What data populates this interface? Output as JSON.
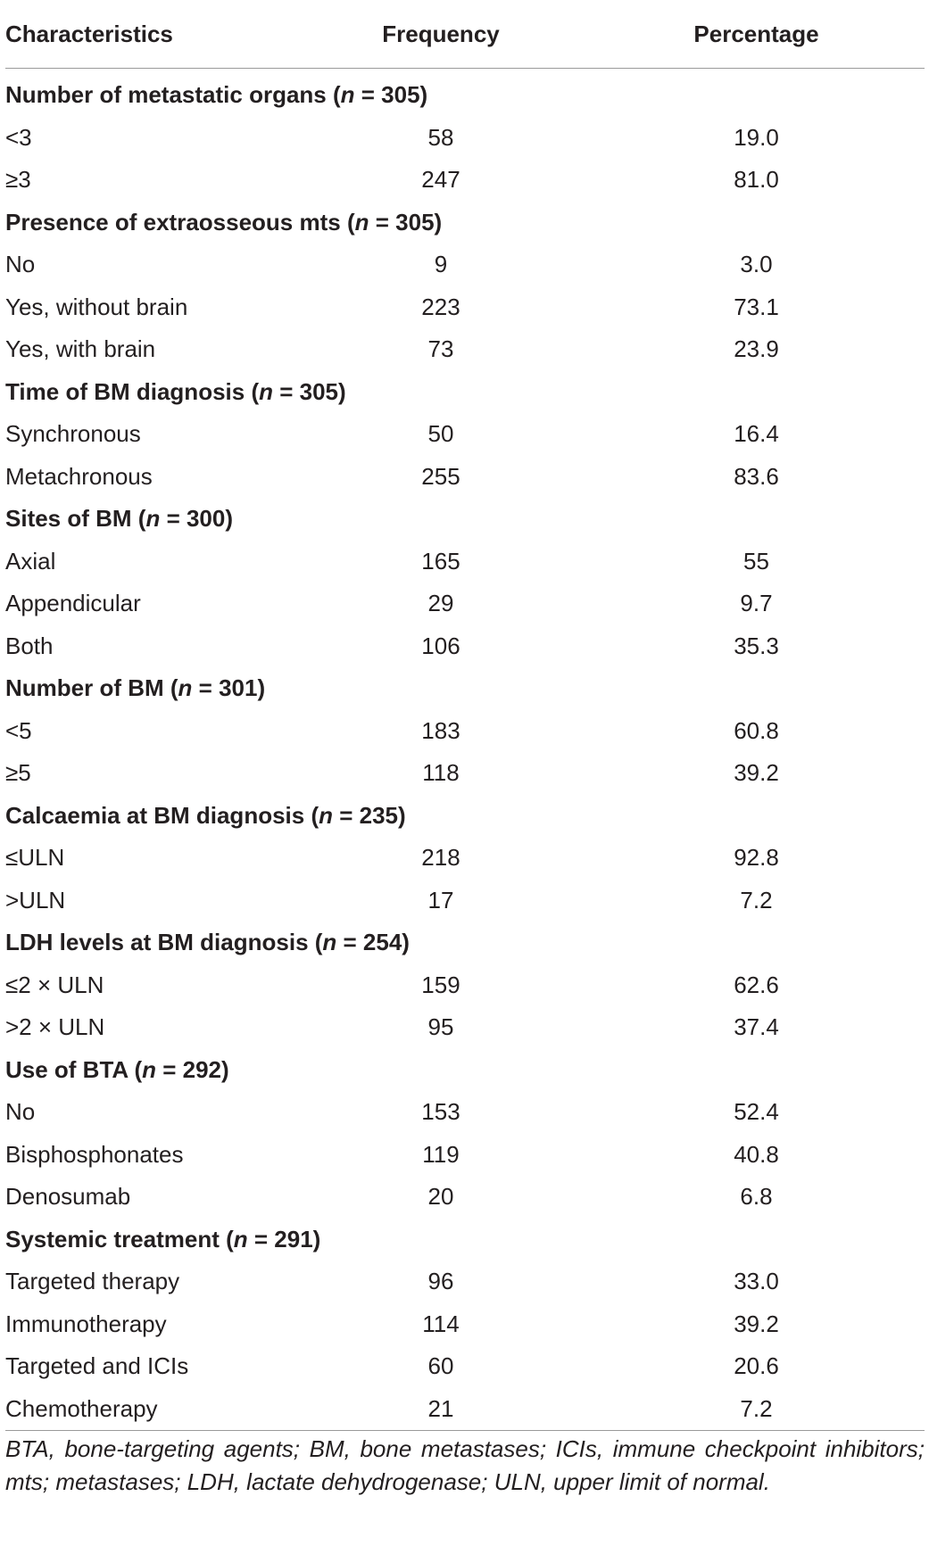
{
  "table": {
    "headers": {
      "characteristics": "Characteristics",
      "frequency": "Frequency",
      "percentage": "Percentage"
    },
    "sections": [
      {
        "label": "Number of metastatic organs (",
        "n_var": "n",
        "n_rest": " = 305)",
        "rows": [
          {
            "label": "<3",
            "frequency": "58",
            "percentage": "19.0"
          },
          {
            "label": "≥3",
            "frequency": "247",
            "percentage": "81.0"
          }
        ]
      },
      {
        "label": "Presence of extraosseous mts (",
        "n_var": "n",
        "n_rest": " = 305)",
        "rows": [
          {
            "label": "No",
            "frequency": "9",
            "percentage": "3.0"
          },
          {
            "label": "Yes, without brain",
            "frequency": "223",
            "percentage": "73.1"
          },
          {
            "label": "Yes, with brain",
            "frequency": "73",
            "percentage": "23.9"
          }
        ]
      },
      {
        "label": "Time of BM diagnosis (",
        "n_var": "n",
        "n_rest": " = 305)",
        "rows": [
          {
            "label": "Synchronous",
            "frequency": "50",
            "percentage": "16.4"
          },
          {
            "label": "Metachronous",
            "frequency": "255",
            "percentage": "83.6"
          }
        ]
      },
      {
        "label": "Sites of BM (",
        "n_var": "n",
        "n_rest": " = 300)",
        "rows": [
          {
            "label": "Axial",
            "frequency": "165",
            "percentage": "55"
          },
          {
            "label": "Appendicular",
            "frequency": "29",
            "percentage": "9.7"
          },
          {
            "label": "Both",
            "frequency": "106",
            "percentage": "35.3"
          }
        ]
      },
      {
        "label": "Number of BM (",
        "n_var": "n",
        "n_rest": " = 301)",
        "rows": [
          {
            "label": "<5",
            "frequency": "183",
            "percentage": "60.8"
          },
          {
            "label": "≥5",
            "frequency": "118",
            "percentage": "39.2"
          }
        ]
      },
      {
        "label": "Calcaemia at BM diagnosis (",
        "n_var": "n",
        "n_rest": " = 235)",
        "rows": [
          {
            "label": "≤ULN",
            "frequency": "218",
            "percentage": "92.8"
          },
          {
            "label": ">ULN",
            "frequency": "17",
            "percentage": "7.2"
          }
        ]
      },
      {
        "label": "LDH levels at BM diagnosis (",
        "n_var": "n",
        "n_rest": " = 254)",
        "rows": [
          {
            "label": "≤2 × ULN",
            "frequency": "159",
            "percentage": "62.6"
          },
          {
            "label": ">2 × ULN",
            "frequency": "95",
            "percentage": "37.4"
          }
        ]
      },
      {
        "label": "Use of BTA (",
        "n_var": "n",
        "n_rest": " = 292)",
        "rows": [
          {
            "label": "No",
            "frequency": "153",
            "percentage": "52.4"
          },
          {
            "label": "Bisphosphonates",
            "frequency": "119",
            "percentage": "40.8"
          },
          {
            "label": "Denosumab",
            "frequency": "20",
            "percentage": "6.8"
          }
        ]
      },
      {
        "label": "Systemic treatment (",
        "n_var": "n",
        "n_rest": " = 291)",
        "rows": [
          {
            "label": "Targeted therapy",
            "frequency": "96",
            "percentage": "33.0"
          },
          {
            "label": "Immunotherapy",
            "frequency": "114",
            "percentage": "39.2"
          },
          {
            "label": "Targeted and ICIs",
            "frequency": "60",
            "percentage": "20.6"
          },
          {
            "label": "Chemotherapy",
            "frequency": "21",
            "percentage": "7.2"
          }
        ]
      }
    ]
  },
  "footnote": "BTA, bone-targeting agents; BM, bone metastases; ICIs, immune checkpoint inhibitors; mts; metastases; LDH, lactate dehydrogenase; ULN, upper limit of normal."
}
